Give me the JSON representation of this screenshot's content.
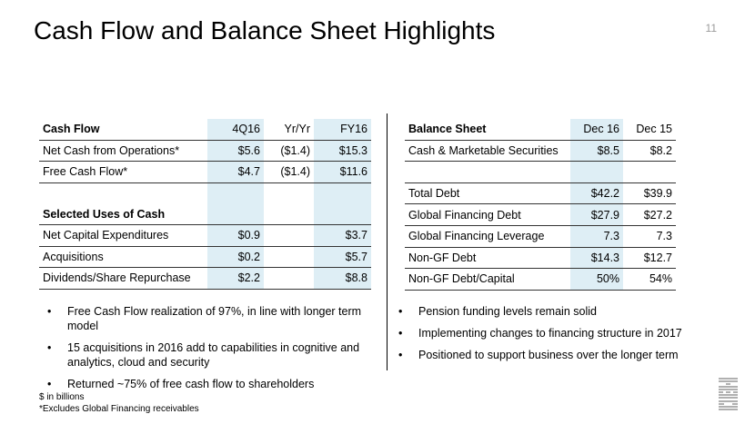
{
  "header": {
    "title": "Cash Flow and Balance Sheet Highlights",
    "page_number": "11"
  },
  "cash_flow": {
    "columns": [
      "Cash Flow",
      "4Q16",
      "Yr/Yr",
      "FY16"
    ],
    "rows": [
      [
        "Net Cash from Operations*",
        "$5.6",
        "($1.4)",
        "$15.3"
      ],
      [
        "Free Cash Flow*",
        "$4.7",
        "($1.4)",
        "$11.6"
      ],
      [
        "",
        "",
        "",
        ""
      ],
      [
        "Selected Uses of Cash",
        "",
        "",
        ""
      ],
      [
        "Net Capital Expenditures",
        "$0.9",
        "",
        "$3.7"
      ],
      [
        "Acquisitions",
        "$0.2",
        "",
        "$5.7"
      ],
      [
        "Dividends/Share Repurchase",
        "$2.2",
        "",
        "$8.8"
      ]
    ]
  },
  "balance_sheet": {
    "columns": [
      "Balance Sheet",
      "Dec 16",
      "Dec 15"
    ],
    "rows": [
      [
        "Cash & Marketable Securities",
        "$8.5",
        "$8.2"
      ],
      [
        "",
        "",
        ""
      ],
      [
        "Total Debt",
        "$42.2",
        "$39.9"
      ],
      [
        "Global Financing Debt",
        "$27.9",
        "$27.2"
      ],
      [
        "Global Financing Leverage",
        "7.3",
        "7.3"
      ],
      [
        "Non-GF Debt",
        "$14.3",
        "$12.7"
      ],
      [
        "Non-GF Debt/Capital",
        "50%",
        "54%"
      ]
    ]
  },
  "left_bullets": [
    "Free Cash Flow realization of 97%, in line with longer term model",
    "15 acquisitions in 2016 add to capabilities in cognitive and analytics, cloud and security",
    "Returned ~75% of free cash flow to shareholders"
  ],
  "right_bullets": [
    "Pension funding levels remain solid",
    "Implementing changes to financing structure in 2017",
    "Positioned to support business over the longer term"
  ],
  "footnotes": {
    "units": "$ in billions",
    "note": "*Excludes Global Financing receivables"
  },
  "bullet_glyph": "•",
  "logo": {
    "name": "ibm-logo",
    "text": "IBM",
    "color": "#b0b0b0"
  },
  "colors": {
    "highlight": "#deeef5",
    "rule": "#333333"
  }
}
